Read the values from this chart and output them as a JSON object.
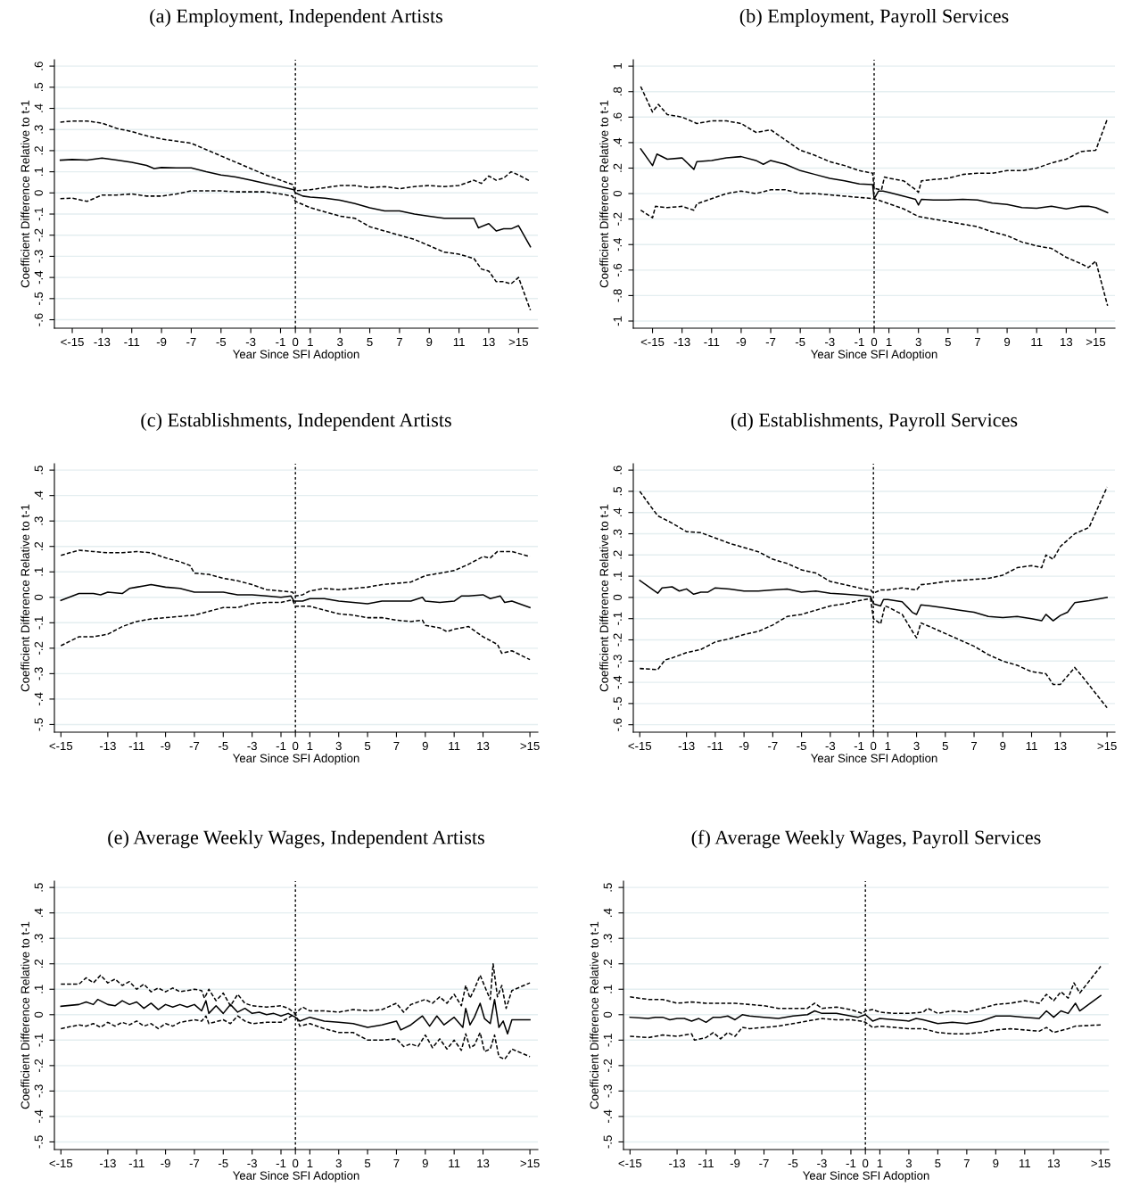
{
  "chart_data": [
    {
      "type": "line",
      "title": "(a) Employment, Independent Artists",
      "xlabel": "Year Since SFI Adoption",
      "ylabel": "Coefficient Difference Relative to t-1",
      "grid": "y",
      "xlim": [
        -16.2,
        16.3
      ],
      "ylim": [
        -0.64,
        0.63
      ],
      "xticks": [
        {
          "value": -15,
          "label": "<-15"
        },
        -13,
        -11,
        -9,
        -7,
        -5,
        -3,
        -1,
        0,
        1,
        3,
        5,
        7,
        9,
        11,
        13,
        {
          "value": 15,
          "label": ">15"
        }
      ],
      "yticks": [
        {
          "value": -0.6,
          "label": "-.6"
        },
        {
          "value": -0.5,
          "label": "-.5"
        },
        {
          "value": -0.4,
          "label": "-.4"
        },
        {
          "value": -0.3,
          "label": "-.3"
        },
        {
          "value": -0.2,
          "label": "-.2"
        },
        {
          "value": -0.1,
          "label": "-.1"
        },
        0,
        {
          "value": 0.1,
          "label": ".1"
        },
        {
          "value": 0.2,
          "label": ".2"
        },
        {
          "value": 0.3,
          "label": ".3"
        },
        {
          "value": 0.4,
          "label": ".4"
        },
        {
          "value": 0.5,
          "label": ".5"
        },
        {
          "value": 0.6,
          "label": ".6"
        }
      ],
      "ref_lines": [
        {
          "axis": "x",
          "value": 0,
          "label": null,
          "color": "#000000",
          "line_style": "dotted"
        }
      ],
      "series": [
        {
          "color": "#000000",
          "line_style": "solid",
          "x": [
            -15.8,
            -15,
            -14,
            -13,
            -12,
            -11,
            -10,
            -9.5,
            -9,
            -8,
            -7,
            -6,
            -5,
            -4,
            -3,
            -2,
            -1,
            -0.1,
            0,
            0.5,
            1,
            2,
            3,
            4,
            5,
            6,
            7,
            8,
            9,
            10,
            11,
            12,
            12.3,
            13,
            13.5,
            14,
            14.5,
            15,
            15.8
          ],
          "values": [
            0.155,
            0.158,
            0.155,
            0.165,
            0.155,
            0.145,
            0.13,
            0.115,
            0.12,
            0.118,
            0.118,
            0.1,
            0.085,
            0.075,
            0.06,
            0.045,
            0.03,
            0.015,
            0,
            -0.015,
            -0.02,
            -0.025,
            -0.035,
            -0.05,
            -0.07,
            -0.085,
            -0.085,
            -0.1,
            -0.11,
            -0.12,
            -0.12,
            -0.12,
            -0.165,
            -0.145,
            -0.18,
            -0.17,
            -0.17,
            -0.155,
            -0.255
          ]
        },
        {
          "color": "#000000",
          "line_style": "dashed",
          "x": [
            -15.8,
            -15,
            -14,
            -13,
            -12,
            -11,
            -10,
            -9,
            -8,
            -7,
            -6,
            -5,
            -4,
            -3,
            -2,
            -1,
            -0.2,
            0,
            1,
            2,
            3,
            4,
            5,
            6,
            7,
            8,
            9,
            10,
            11,
            12,
            12.5,
            13,
            13.5,
            14,
            14.5,
            15,
            15.8
          ],
          "values": [
            0.335,
            0.34,
            0.34,
            0.33,
            0.305,
            0.29,
            0.27,
            0.255,
            0.245,
            0.235,
            0.205,
            0.175,
            0.145,
            0.115,
            0.085,
            0.06,
            0.04,
            0.01,
            0.015,
            0.025,
            0.035,
            0.035,
            0.025,
            0.03,
            0.02,
            0.03,
            0.035,
            0.03,
            0.035,
            0.06,
            0.045,
            0.08,
            0.06,
            0.07,
            0.1,
            0.085,
            0.055
          ]
        },
        {
          "color": "#000000",
          "line_style": "dashed",
          "x": [
            -15.8,
            -15,
            -14,
            -13,
            -12,
            -11,
            -10,
            -9,
            -8,
            -7,
            -6,
            -5,
            -4,
            -3,
            -2,
            -1,
            -0.2,
            0,
            1,
            2,
            3,
            4,
            5,
            6,
            7,
            8,
            9,
            10,
            11,
            12,
            12.5,
            13,
            13.5,
            14,
            14.5,
            15,
            15.8
          ],
          "values": [
            -0.027,
            -0.025,
            -0.04,
            -0.01,
            -0.01,
            -0.005,
            -0.015,
            -0.015,
            -0.005,
            0.01,
            0.01,
            0.01,
            0.005,
            0.005,
            0.005,
            -0.005,
            -0.015,
            -0.04,
            -0.07,
            -0.09,
            -0.11,
            -0.12,
            -0.16,
            -0.18,
            -0.2,
            -0.22,
            -0.25,
            -0.28,
            -0.29,
            -0.31,
            -0.36,
            -0.37,
            -0.42,
            -0.42,
            -0.43,
            -0.4,
            -0.555
          ]
        }
      ]
    },
    {
      "type": "line",
      "title": "(b) Employment, Payroll Services",
      "xlabel": "Year Since SFI Adoption",
      "ylabel": "Coefficient Difference Relative to t-1",
      "grid": "y",
      "xlim": [
        -16.3,
        16.3
      ],
      "ylim": [
        -1.056,
        1.05
      ],
      "xticks": [
        {
          "value": -15,
          "label": "<-15"
        },
        -13,
        -11,
        -9,
        -7,
        -5,
        -3,
        -1,
        0,
        1,
        3,
        5,
        7,
        9,
        11,
        13,
        {
          "value": 15,
          "label": ">15"
        }
      ],
      "yticks": [
        -1,
        {
          "value": -0.8,
          "label": "-.8"
        },
        {
          "value": -0.6,
          "label": "-.6"
        },
        {
          "value": -0.4,
          "label": "-.4"
        },
        {
          "value": -0.2,
          "label": "-.2"
        },
        0,
        {
          "value": 0.2,
          "label": ".2"
        },
        {
          "value": 0.4,
          "label": ".4"
        },
        {
          "value": 0.6,
          "label": ".6"
        },
        {
          "value": 0.8,
          "label": ".8"
        },
        1
      ],
      "ref_lines": [
        {
          "axis": "x",
          "value": 0,
          "label": null,
          "color": "#000000",
          "line_style": "dotted"
        }
      ],
      "series": [
        {
          "color": "#000000",
          "line_style": "solid",
          "x": [
            -15.8,
            -15,
            -14.7,
            -14,
            -13,
            -12.2,
            -12,
            -11,
            -10,
            -9,
            -8,
            -7.5,
            -7,
            -6,
            -5,
            -4,
            -3,
            -2,
            -1,
            -0.1,
            0,
            0.3,
            0.6,
            1,
            2,
            2.8,
            3,
            3.2,
            4,
            5,
            6,
            7,
            8,
            9,
            10,
            11,
            12,
            13,
            14,
            14.5,
            15,
            15.8
          ],
          "values": [
            0.35,
            0.22,
            0.31,
            0.27,
            0.28,
            0.19,
            0.25,
            0.26,
            0.28,
            0.29,
            0.26,
            0.23,
            0.26,
            0.23,
            0.18,
            0.15,
            0.12,
            0.1,
            0.075,
            0.07,
            -0.04,
            0.02,
            0.02,
            0.01,
            -0.02,
            -0.045,
            -0.09,
            -0.045,
            -0.05,
            -0.05,
            -0.045,
            -0.05,
            -0.075,
            -0.085,
            -0.11,
            -0.115,
            -0.1,
            -0.12,
            -0.1,
            -0.1,
            -0.11,
            -0.15
          ]
        },
        {
          "color": "#000000",
          "line_style": "dashed",
          "x": [
            -15.8,
            -15,
            -14.6,
            -14,
            -13,
            -12,
            -11,
            -10,
            -9,
            -8,
            -7,
            -6,
            -5,
            -4,
            -3,
            -2,
            -1,
            -0.1,
            0,
            0.5,
            0.7,
            1,
            2,
            2.7,
            3,
            3.2,
            4,
            5,
            6,
            7,
            8,
            9,
            10,
            11,
            12,
            13,
            14,
            15,
            15.8
          ],
          "values": [
            0.84,
            0.64,
            0.7,
            0.62,
            0.6,
            0.55,
            0.57,
            0.57,
            0.55,
            0.48,
            0.5,
            0.42,
            0.34,
            0.3,
            0.25,
            0.22,
            0.18,
            0.16,
            0.04,
            0.03,
            0.13,
            0.12,
            0.1,
            0.04,
            0.01,
            0.1,
            0.11,
            0.12,
            0.15,
            0.16,
            0.16,
            0.18,
            0.18,
            0.2,
            0.24,
            0.27,
            0.33,
            0.34,
            0.59
          ]
        },
        {
          "color": "#000000",
          "line_style": "dashed",
          "x": [
            -15.8,
            -15,
            -14.8,
            -14,
            -13,
            -12.2,
            -12,
            -11,
            -10,
            -9,
            -8,
            -7,
            -6,
            -5,
            -4,
            -3,
            -2,
            -1,
            0,
            1,
            2,
            3,
            4,
            5,
            6,
            7,
            8,
            9,
            10,
            11,
            12,
            13,
            14,
            14.5,
            15,
            15.8
          ],
          "values": [
            -0.13,
            -0.19,
            -0.1,
            -0.11,
            -0.1,
            -0.13,
            -0.08,
            -0.04,
            0.0,
            0.02,
            0.0,
            0.03,
            0.03,
            0.0,
            0.0,
            -0.01,
            -0.02,
            -0.03,
            -0.04,
            -0.08,
            -0.12,
            -0.18,
            -0.2,
            -0.22,
            -0.24,
            -0.26,
            -0.3,
            -0.33,
            -0.38,
            -0.41,
            -0.43,
            -0.5,
            -0.55,
            -0.58,
            -0.53,
            -0.88
          ]
        }
      ]
    },
    {
      "type": "line",
      "title": "(c) Establishments, Independent Artists",
      "xlabel": "Year Since SFI Adoption",
      "ylabel": "Coefficient Difference Relative to t-1",
      "grid": "y",
      "xlim": [
        -16.7,
        16.8
      ],
      "ylim": [
        -0.53,
        0.525
      ],
      "xticks": [
        {
          "value": -16.25,
          "label": "<-15"
        },
        -13,
        -11,
        -9,
        -7,
        -5,
        -3,
        -1,
        0,
        1,
        3,
        5,
        7,
        9,
        11,
        13,
        {
          "value": 16.25,
          "label": ">15"
        }
      ],
      "yticks": [
        {
          "value": -0.5,
          "label": "-.5"
        },
        {
          "value": -0.4,
          "label": "-.4"
        },
        {
          "value": -0.3,
          "label": "-.3"
        },
        {
          "value": -0.2,
          "label": "-.2"
        },
        {
          "value": -0.1,
          "label": "-.1"
        },
        0,
        {
          "value": 0.1,
          "label": ".1"
        },
        {
          "value": 0.2,
          "label": ".2"
        },
        {
          "value": 0.3,
          "label": ".3"
        },
        {
          "value": 0.4,
          "label": ".4"
        },
        {
          "value": 0.5,
          "label": ".5"
        }
      ],
      "ref_lines": [
        {
          "axis": "x",
          "value": 0,
          "label": null,
          "color": "#000000",
          "line_style": "dotted"
        }
      ],
      "series": [
        {
          "color": "#000000",
          "line_style": "solid",
          "x": [
            -16.25,
            -15,
            -14,
            -13.5,
            -13,
            -12,
            -11.5,
            -11,
            -10.5,
            -10,
            -9,
            -8,
            -7,
            -6,
            -5,
            -4,
            -3,
            -2,
            -1,
            -0.3,
            -0.1,
            0,
            0.5,
            1,
            2,
            3,
            4,
            5,
            6,
            7,
            8,
            8.8,
            9,
            10,
            11,
            11.5,
            12,
            13,
            13.5,
            14.2,
            14.5,
            15,
            16.25
          ],
          "values": [
            -0.012,
            0.015,
            0.015,
            0.01,
            0.02,
            0.015,
            0.035,
            0.04,
            0.045,
            0.05,
            0.04,
            0.035,
            0.02,
            0.02,
            0.02,
            0.01,
            0.01,
            0.005,
            0.0,
            0.005,
            -0.015,
            -0.015,
            -0.015,
            -0.005,
            -0.005,
            -0.015,
            -0.02,
            -0.025,
            -0.015,
            -0.015,
            -0.015,
            0.0,
            -0.015,
            -0.02,
            -0.015,
            0.005,
            0.005,
            0.01,
            -0.005,
            0.005,
            -0.02,
            -0.015,
            -0.04
          ]
        },
        {
          "color": "#000000",
          "line_style": "dashed",
          "x": [
            -16.25,
            -15,
            -14,
            -13,
            -12,
            -11,
            -10,
            -9,
            -8,
            -7.3,
            -7,
            -6,
            -5,
            -4,
            -3,
            -2,
            -1,
            -0.2,
            0,
            0.5,
            1,
            2,
            3,
            4,
            5,
            6,
            7,
            8,
            9,
            10,
            11,
            12,
            13,
            13.5,
            14,
            15,
            16.25
          ],
          "values": [
            0.165,
            0.185,
            0.18,
            0.175,
            0.175,
            0.18,
            0.175,
            0.155,
            0.14,
            0.125,
            0.095,
            0.09,
            0.075,
            0.065,
            0.05,
            0.03,
            0.025,
            0.02,
            0.005,
            0.01,
            0.025,
            0.035,
            0.03,
            0.035,
            0.04,
            0.05,
            0.055,
            0.06,
            0.085,
            0.095,
            0.105,
            0.13,
            0.16,
            0.155,
            0.18,
            0.18,
            0.16
          ]
        },
        {
          "color": "#000000",
          "line_style": "dashed",
          "x": [
            -16.25,
            -15,
            -14,
            -13,
            -12,
            -11,
            -10,
            -9,
            -8,
            -7,
            -6,
            -5,
            -4,
            -3,
            -2,
            -1,
            -0.2,
            0,
            1,
            2,
            3,
            4,
            5,
            6,
            7,
            8,
            8.8,
            9,
            10,
            10.5,
            11,
            12,
            13,
            13.5,
            14,
            14.3,
            15,
            16.25
          ],
          "values": [
            -0.19,
            -0.155,
            -0.155,
            -0.145,
            -0.115,
            -0.095,
            -0.085,
            -0.08,
            -0.075,
            -0.07,
            -0.055,
            -0.04,
            -0.04,
            -0.025,
            -0.02,
            -0.02,
            -0.01,
            -0.035,
            -0.035,
            -0.05,
            -0.065,
            -0.07,
            -0.08,
            -0.08,
            -0.09,
            -0.095,
            -0.09,
            -0.11,
            -0.12,
            -0.135,
            -0.125,
            -0.115,
            -0.155,
            -0.17,
            -0.185,
            -0.22,
            -0.21,
            -0.245
          ]
        }
      ]
    },
    {
      "type": "line",
      "title": "(d) Establishments, Payroll Services",
      "xlabel": "Year Since SFI Adoption",
      "ylabel": "Coefficient Difference Relative to t-1",
      "grid": "y",
      "xlim": [
        -16.7,
        16.8
      ],
      "ylim": [
        -0.635,
        0.63
      ],
      "xticks": [
        {
          "value": -16.25,
          "label": "<-15"
        },
        -13,
        -11,
        -9,
        -7,
        -5,
        -3,
        -1,
        0,
        1,
        3,
        5,
        7,
        9,
        11,
        13,
        {
          "value": 16.25,
          "label": ">15"
        }
      ],
      "yticks": [
        {
          "value": -0.6,
          "label": "-.6"
        },
        {
          "value": -0.5,
          "label": "-.5"
        },
        {
          "value": -0.4,
          "label": "-.4"
        },
        {
          "value": -0.3,
          "label": "-.3"
        },
        {
          "value": -0.2,
          "label": "-.2"
        },
        {
          "value": -0.1,
          "label": "-.1"
        },
        0,
        {
          "value": 0.1,
          "label": ".1"
        },
        {
          "value": 0.2,
          "label": ".2"
        },
        {
          "value": 0.3,
          "label": ".3"
        },
        {
          "value": 0.4,
          "label": ".4"
        },
        {
          "value": 0.5,
          "label": ".5"
        },
        {
          "value": 0.6,
          "label": ".6"
        }
      ],
      "ref_lines": [
        {
          "axis": "x",
          "value": 0,
          "label": null,
          "color": "#000000",
          "line_style": "dotted"
        }
      ],
      "series": [
        {
          "color": "#000000",
          "line_style": "solid",
          "x": [
            -16.25,
            -15,
            -14.7,
            -14,
            -13.5,
            -13,
            -12.5,
            -12,
            -11.5,
            -11,
            -10,
            -9,
            -8,
            -7,
            -6,
            -5,
            -4,
            -3,
            -2,
            -1,
            -0.2,
            0,
            0.5,
            0.7,
            1,
            2,
            2.7,
            3,
            3.3,
            4,
            5,
            6,
            7,
            8,
            9,
            10,
            11,
            11.7,
            12,
            12.5,
            13,
            13.5,
            14,
            15,
            16.25
          ],
          "values": [
            0.08,
            0.02,
            0.045,
            0.05,
            0.03,
            0.04,
            0.015,
            0.025,
            0.025,
            0.045,
            0.04,
            0.03,
            0.03,
            0.035,
            0.04,
            0.025,
            0.03,
            0.02,
            0.015,
            0.01,
            0.005,
            -0.03,
            -0.04,
            -0.01,
            -0.01,
            -0.02,
            -0.07,
            -0.08,
            -0.035,
            -0.04,
            -0.05,
            -0.06,
            -0.07,
            -0.09,
            -0.095,
            -0.09,
            -0.1,
            -0.11,
            -0.08,
            -0.11,
            -0.085,
            -0.07,
            -0.025,
            -0.015,
            0.0
          ]
        },
        {
          "color": "#000000",
          "line_style": "dashed",
          "x": [
            -16.25,
            -15.5,
            -15,
            -14,
            -13,
            -12,
            -11,
            -10,
            -9,
            -8,
            -7,
            -6,
            -5,
            -4,
            -3,
            -2,
            -1,
            -0.2,
            0,
            0.5,
            1,
            2,
            3,
            3.3,
            4,
            5,
            6,
            7,
            8,
            9,
            10,
            11,
            11.7,
            12,
            12.5,
            13,
            13.5,
            14,
            15,
            16.25
          ],
          "values": [
            0.5,
            0.43,
            0.385,
            0.35,
            0.31,
            0.305,
            0.28,
            0.255,
            0.235,
            0.215,
            0.18,
            0.16,
            0.13,
            0.115,
            0.075,
            0.06,
            0.045,
            0.035,
            0.02,
            0.035,
            0.035,
            0.045,
            0.035,
            0.06,
            0.065,
            0.075,
            0.08,
            0.085,
            0.09,
            0.105,
            0.14,
            0.15,
            0.14,
            0.2,
            0.18,
            0.24,
            0.27,
            0.3,
            0.33,
            0.52
          ]
        },
        {
          "color": "#000000",
          "line_style": "dashed",
          "x": [
            -16.25,
            -15,
            -14.5,
            -14,
            -13,
            -12,
            -11,
            -10,
            -9,
            -8,
            -7,
            -6,
            -5,
            -4,
            -3,
            -2,
            -1,
            -0.2,
            0,
            0.5,
            0.8,
            1,
            2,
            2.8,
            3,
            3.3,
            4,
            5,
            6,
            7,
            8,
            9,
            10,
            11,
            12,
            12.5,
            13,
            13.5,
            14,
            14.5,
            16.25
          ],
          "values": [
            -0.335,
            -0.34,
            -0.295,
            -0.285,
            -0.26,
            -0.245,
            -0.21,
            -0.195,
            -0.175,
            -0.16,
            -0.13,
            -0.09,
            -0.08,
            -0.06,
            -0.04,
            -0.03,
            -0.015,
            -0.005,
            -0.1,
            -0.125,
            -0.04,
            -0.045,
            -0.08,
            -0.17,
            -0.19,
            -0.12,
            -0.14,
            -0.17,
            -0.2,
            -0.23,
            -0.27,
            -0.3,
            -0.32,
            -0.35,
            -0.36,
            -0.41,
            -0.41,
            -0.37,
            -0.33,
            -0.37,
            -0.52
          ]
        }
      ]
    },
    {
      "type": "line",
      "title": "(e) Average Weekly Wages, Independent Artists",
      "xlabel": "Year Since SFI Adoption",
      "ylabel": "Coefficient Difference Relative to t-1",
      "grid": "y",
      "xlim": [
        -16.7,
        16.8
      ],
      "ylim": [
        -0.53,
        0.525
      ],
      "xticks": [
        {
          "value": -16.25,
          "label": "<-15"
        },
        -13,
        -11,
        -9,
        -7,
        -5,
        -3,
        -1,
        0,
        1,
        3,
        5,
        7,
        9,
        11,
        13,
        {
          "value": 16.25,
          "label": ">15"
        }
      ],
      "yticks": [
        {
          "value": -0.5,
          "label": "-.5"
        },
        {
          "value": -0.4,
          "label": "-.4"
        },
        {
          "value": -0.3,
          "label": "-.3"
        },
        {
          "value": -0.2,
          "label": "-.2"
        },
        {
          "value": -0.1,
          "label": "-.1"
        },
        0,
        {
          "value": 0.1,
          "label": ".1"
        },
        {
          "value": 0.2,
          "label": ".2"
        },
        {
          "value": 0.3,
          "label": ".3"
        },
        {
          "value": 0.4,
          "label": ".4"
        },
        {
          "value": 0.5,
          "label": ".5"
        }
      ],
      "ref_lines": [
        {
          "axis": "x",
          "value": 0,
          "label": null,
          "color": "#000000",
          "line_style": "dotted"
        }
      ],
      "series": [
        {
          "color": "#000000",
          "line_style": "solid",
          "x": [
            -16.25,
            -15,
            -14.5,
            -14,
            -13.7,
            -13,
            -12.5,
            -12,
            -11.5,
            -11,
            -10.5,
            -10,
            -9.5,
            -9,
            -8.5,
            -8,
            -7.5,
            -7,
            -6.5,
            -6.2,
            -6,
            -5.5,
            -5,
            -4.5,
            -4,
            -3.5,
            -3,
            -2.5,
            -2,
            -1.5,
            -1,
            -0.5,
            0,
            0.3,
            1,
            2,
            3,
            4,
            5,
            6,
            7,
            7.3,
            8,
            8.8,
            9.3,
            9.8,
            10.3,
            11,
            11.6,
            11.8,
            12.1,
            12.4,
            12.8,
            13.1,
            13.5,
            13.8,
            14.1,
            14.4,
            14.7,
            15,
            16.25
          ],
          "values": [
            0.033,
            0.04,
            0.05,
            0.04,
            0.06,
            0.04,
            0.035,
            0.055,
            0.04,
            0.05,
            0.025,
            0.045,
            0.02,
            0.04,
            0.03,
            0.04,
            0.03,
            0.04,
            0.015,
            0.055,
            0.005,
            0.035,
            0.005,
            0.04,
            0.01,
            0.025,
            0.005,
            0.01,
            0.0,
            0.005,
            -0.005,
            0.005,
            -0.01,
            -0.025,
            -0.01,
            -0.025,
            -0.03,
            -0.035,
            -0.05,
            -0.04,
            -0.025,
            -0.06,
            -0.04,
            -0.005,
            -0.045,
            -0.005,
            -0.04,
            -0.01,
            -0.05,
            0.025,
            -0.04,
            -0.01,
            0.045,
            -0.015,
            -0.035,
            0.06,
            -0.05,
            -0.025,
            -0.075,
            -0.02,
            -0.02
          ]
        },
        {
          "color": "#000000",
          "line_style": "dashed",
          "x": [
            -16.25,
            -15,
            -14.5,
            -14,
            -13.5,
            -13,
            -12.5,
            -12,
            -11.5,
            -11,
            -10.5,
            -10,
            -9.5,
            -9,
            -8.5,
            -8,
            -7,
            -6.5,
            -6.3,
            -6,
            -5.5,
            -5,
            -4.5,
            -4,
            -3.5,
            -3,
            -2,
            -1,
            -0.5,
            0,
            0.5,
            1,
            2,
            3,
            4,
            5,
            6,
            7,
            7.5,
            8,
            9,
            9.5,
            10,
            10.5,
            11,
            11.5,
            11.8,
            12.1,
            12.4,
            12.8,
            13.2,
            13.5,
            13.7,
            14,
            14.3,
            14.6,
            15,
            16.25
          ],
          "values": [
            0.12,
            0.12,
            0.145,
            0.125,
            0.155,
            0.125,
            0.14,
            0.115,
            0.13,
            0.1,
            0.12,
            0.09,
            0.105,
            0.09,
            0.105,
            0.09,
            0.1,
            0.095,
            0.065,
            0.1,
            0.055,
            0.085,
            0.035,
            0.08,
            0.045,
            0.035,
            0.03,
            0.035,
            0.025,
            0.005,
            0.03,
            0.015,
            0.015,
            0.01,
            0.02,
            0.015,
            0.02,
            0.045,
            0.01,
            0.04,
            0.06,
            0.045,
            0.07,
            0.045,
            0.08,
            0.035,
            0.115,
            0.065,
            0.1,
            0.155,
            0.1,
            0.06,
            0.2,
            0.07,
            0.115,
            0.025,
            0.095,
            0.125
          ]
        },
        {
          "color": "#000000",
          "line_style": "dashed",
          "x": [
            -16.25,
            -15,
            -14.5,
            -14,
            -13.5,
            -13,
            -12.5,
            -12,
            -11.5,
            -11,
            -10.5,
            -10,
            -9.5,
            -9,
            -8.5,
            -8,
            -7,
            -6.5,
            -6.2,
            -6,
            -5,
            -4.5,
            -4,
            -3.5,
            -3,
            -2,
            -1,
            0,
            0.3,
            1,
            2,
            3,
            4,
            5,
            6,
            7,
            7.5,
            8,
            8.5,
            9,
            9.5,
            10,
            10.5,
            11,
            11.5,
            11.8,
            12.1,
            12.4,
            12.8,
            13.1,
            13.5,
            13.8,
            14.1,
            14.5,
            15,
            16.25
          ],
          "values": [
            -0.055,
            -0.04,
            -0.045,
            -0.035,
            -0.05,
            -0.03,
            -0.045,
            -0.03,
            -0.04,
            -0.025,
            -0.045,
            -0.035,
            -0.055,
            -0.035,
            -0.045,
            -0.03,
            -0.02,
            -0.025,
            -0.005,
            -0.035,
            -0.02,
            -0.035,
            -0.005,
            -0.025,
            -0.035,
            -0.03,
            -0.03,
            0.005,
            -0.045,
            -0.035,
            -0.055,
            -0.07,
            -0.07,
            -0.1,
            -0.1,
            -0.095,
            -0.125,
            -0.115,
            -0.125,
            -0.08,
            -0.13,
            -0.095,
            -0.135,
            -0.1,
            -0.14,
            -0.075,
            -0.13,
            -0.12,
            -0.07,
            -0.145,
            -0.135,
            -0.08,
            -0.165,
            -0.175,
            -0.135,
            -0.165
          ]
        }
      ]
    },
    {
      "type": "line",
      "title": "(f) Average Weekly Wages, Payroll Services",
      "xlabel": "Year Since SFI Adoption",
      "ylabel": "Coefficient Difference Relative to t-1",
      "grid": "y",
      "xlim": [
        -16.7,
        16.8
      ],
      "ylim": [
        -0.53,
        0.525
      ],
      "xticks": [
        {
          "value": -16.25,
          "label": "<-15"
        },
        -13,
        -11,
        -9,
        -7,
        -5,
        -3,
        -1,
        0,
        1,
        3,
        5,
        7,
        9,
        11,
        13,
        {
          "value": 16.25,
          "label": ">15"
        }
      ],
      "yticks": [
        {
          "value": -0.5,
          "label": "-.5"
        },
        {
          "value": -0.4,
          "label": "-.4"
        },
        {
          "value": -0.3,
          "label": "-.3"
        },
        {
          "value": -0.2,
          "label": "-.2"
        },
        {
          "value": -0.1,
          "label": "-.1"
        },
        0,
        {
          "value": 0.1,
          "label": ".1"
        },
        {
          "value": 0.2,
          "label": ".2"
        },
        {
          "value": 0.3,
          "label": ".3"
        },
        {
          "value": 0.4,
          "label": ".4"
        },
        {
          "value": 0.5,
          "label": ".5"
        }
      ],
      "ref_lines": [
        {
          "axis": "x",
          "value": 0,
          "label": null,
          "color": "#000000",
          "line_style": "dotted"
        }
      ],
      "series": [
        {
          "color": "#000000",
          "line_style": "solid",
          "x": [
            -16.25,
            -15,
            -14.5,
            -14,
            -13.5,
            -13,
            -12.5,
            -12,
            -11.5,
            -11,
            -10.5,
            -10,
            -9.5,
            -9,
            -8.5,
            -8,
            -7,
            -6,
            -5,
            -4,
            -3.5,
            -3,
            -2,
            -1.5,
            -1,
            -0.5,
            0,
            0.5,
            1,
            2,
            3,
            3.5,
            4,
            5,
            6,
            7,
            8,
            9,
            10,
            11,
            12,
            12.5,
            13,
            13.5,
            14,
            14.5,
            14.8,
            16.25
          ],
          "values": [
            -0.01,
            -0.015,
            -0.01,
            -0.01,
            -0.02,
            -0.015,
            -0.015,
            -0.025,
            -0.015,
            -0.03,
            -0.01,
            -0.01,
            -0.005,
            -0.02,
            0.0,
            -0.005,
            -0.01,
            -0.015,
            -0.005,
            0.0,
            0.015,
            0.005,
            0.005,
            0.0,
            -0.005,
            -0.01,
            0.0,
            -0.025,
            -0.015,
            -0.02,
            -0.025,
            -0.015,
            -0.02,
            -0.035,
            -0.03,
            -0.035,
            -0.025,
            -0.005,
            -0.005,
            -0.01,
            -0.015,
            0.015,
            -0.01,
            0.015,
            0.005,
            0.045,
            0.015,
            0.075
          ]
        },
        {
          "color": "#000000",
          "line_style": "dashed",
          "x": [
            -16.25,
            -15,
            -14,
            -13,
            -12,
            -11,
            -10,
            -9,
            -8,
            -7,
            -6,
            -5,
            -4,
            -3.5,
            -3,
            -2,
            -1,
            -0.2,
            0,
            0.5,
            1,
            2,
            3,
            4,
            4.3,
            5,
            6,
            7,
            8,
            9,
            10,
            11,
            12,
            12.5,
            13,
            13.5,
            14,
            14.4,
            14.8,
            16.25
          ],
          "values": [
            0.07,
            0.06,
            0.06,
            0.045,
            0.05,
            0.045,
            0.045,
            0.045,
            0.04,
            0.035,
            0.025,
            0.025,
            0.025,
            0.045,
            0.025,
            0.03,
            0.02,
            0.005,
            0.015,
            0.02,
            0.01,
            0.005,
            0.005,
            0.01,
            0.025,
            0.005,
            0.015,
            0.01,
            0.025,
            0.04,
            0.045,
            0.055,
            0.045,
            0.08,
            0.055,
            0.09,
            0.065,
            0.125,
            0.085,
            0.19
          ]
        },
        {
          "color": "#000000",
          "line_style": "dashed",
          "x": [
            -16.25,
            -15,
            -14,
            -13,
            -12,
            -11.8,
            -11,
            -10.5,
            -10,
            -9.5,
            -9,
            -8.5,
            -8,
            -7,
            -6,
            -5,
            -4,
            -3,
            -2,
            -1,
            -0.3,
            0,
            0.5,
            1,
            2,
            3,
            4,
            5,
            6,
            7,
            8,
            9,
            10,
            11,
            12,
            12.5,
            13,
            14,
            14.5,
            16.25
          ],
          "values": [
            -0.085,
            -0.09,
            -0.08,
            -0.085,
            -0.075,
            -0.1,
            -0.09,
            -0.07,
            -0.095,
            -0.07,
            -0.085,
            -0.05,
            -0.055,
            -0.05,
            -0.045,
            -0.035,
            -0.025,
            -0.015,
            -0.02,
            -0.02,
            -0.025,
            -0.03,
            -0.05,
            -0.045,
            -0.05,
            -0.055,
            -0.055,
            -0.07,
            -0.075,
            -0.075,
            -0.07,
            -0.06,
            -0.055,
            -0.06,
            -0.065,
            -0.05,
            -0.07,
            -0.055,
            -0.045,
            -0.04
          ]
        }
      ]
    }
  ]
}
